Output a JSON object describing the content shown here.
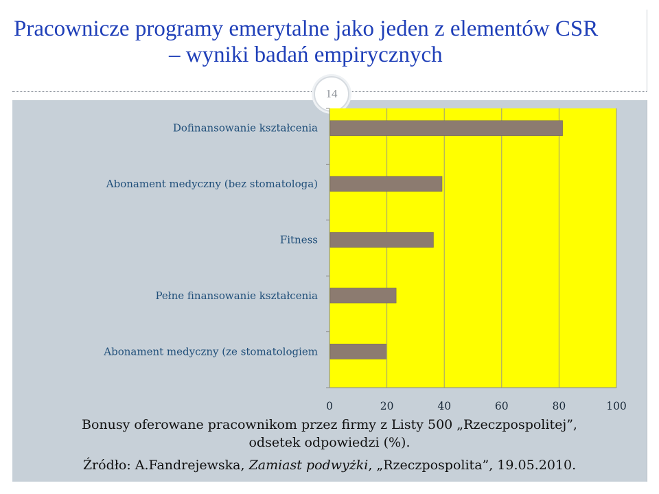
{
  "title": {
    "line1": "Pracownicze programy emerytalne jako jeden z elementów CSR",
    "line2": "– wyniki badań empirycznych"
  },
  "page_number": "14",
  "caption": {
    "line1": "Bonusy oferowane pracownikom przez firmy z Listy 500 „Rzeczpospolitej”,",
    "line2": "odsetek odpowiedzi (%).",
    "source_prefix": "Źródło: A.Fandrejewska, ",
    "source_italic": "Zamiast podwyżki",
    "source_suffix": ", „Rzeczpospolita”, 19.05.2010."
  },
  "colors": {
    "title": "#1f3fb8",
    "plot_background": "#ffff00",
    "bar_fill": "#8c7b70",
    "slide_background": "#c7d0d8"
  },
  "chart_data": {
    "type": "bar",
    "orientation": "horizontal",
    "categories": [
      "Dofinansowanie kształcenia",
      "Abonament medyczny (bez stomatologa)",
      "Fitness",
      "Pełne finansowanie kształcenia",
      "Abonament medyczny (ze stomatologiem"
    ],
    "values": [
      81,
      39,
      36,
      23,
      19.5
    ],
    "xlim": [
      0,
      100
    ],
    "xticks": [
      "0",
      "20",
      "40",
      "60",
      "80",
      "100"
    ],
    "grid": "vertical",
    "legend": "none"
  }
}
